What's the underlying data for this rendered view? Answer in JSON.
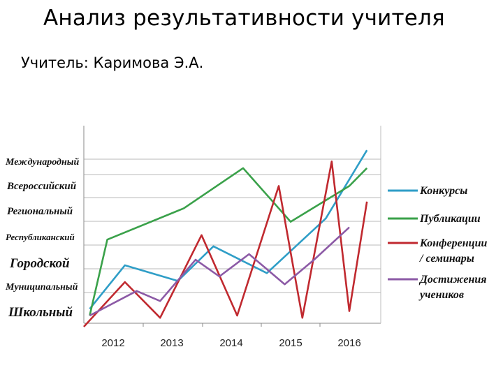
{
  "title": "Анализ результативности учителя",
  "subtitle": "Учитель: Каримова Э.А.",
  "chart_data": {
    "type": "line",
    "categories": [
      "2012",
      "2013",
      "2014",
      "2015",
      "2016"
    ],
    "y_levels": [
      "Школьный",
      "Муниципальный",
      "Городской",
      "Республиканский",
      "Региональный",
      "Всероссийский",
      "Международный"
    ],
    "ylim": [
      0,
      7
    ],
    "grid": true,
    "legend_position": "right",
    "series": [
      {
        "name": "Конкурсы",
        "color": "#2f9ec7",
        "x": [
          2011.6,
          2012.2,
          2013.1,
          2013.7,
          2014.6,
          2015.6,
          2016.3
        ],
        "y": [
          0.3,
          2.25,
          1.55,
          3.1,
          1.9,
          4.35,
          7.4
        ]
      },
      {
        "name": "Публикации",
        "color": "#3aa14a",
        "x": [
          2011.6,
          2011.9,
          2013.2,
          2014.2,
          2015.0,
          2016.0,
          2016.3
        ],
        "y": [
          0.0,
          3.4,
          4.8,
          6.6,
          4.2,
          5.8,
          6.6
        ]
      },
      {
        "name": "Конференции / семинары",
        "color": "#c0292f",
        "x": [
          2011.5,
          2012.2,
          2012.8,
          2013.5,
          2014.1,
          2014.8,
          2015.2,
          2015.7,
          2016.0,
          2016.3
        ],
        "y": [
          -0.5,
          1.5,
          -0.1,
          3.6,
          0.0,
          5.8,
          -0.1,
          6.9,
          0.2,
          5.1
        ]
      },
      {
        "name": "Достижения учеников",
        "color": "#8c5aa6",
        "x": [
          2011.6,
          2012.4,
          2012.8,
          2013.4,
          2013.8,
          2014.3,
          2014.9,
          2015.4,
          2016.0
        ],
        "y": [
          0.0,
          1.1,
          0.65,
          2.5,
          1.75,
          2.75,
          1.4,
          2.5,
          3.95
        ]
      }
    ]
  }
}
